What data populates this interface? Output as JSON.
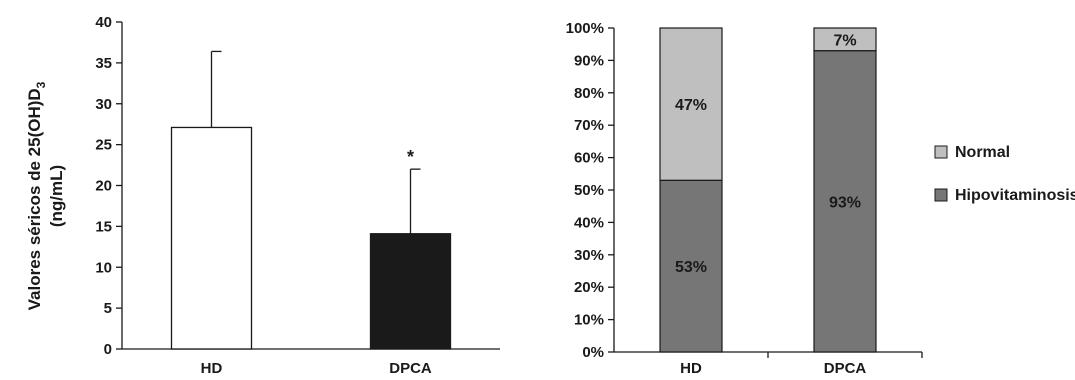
{
  "chart_data": [
    {
      "type": "bar",
      "categories": [
        "HD",
        "DPCA"
      ],
      "values": [
        27.1,
        14.1
      ],
      "error_upper": [
        36.4,
        22.0
      ],
      "colors": [
        "#ffffff",
        "#1a1a1a"
      ],
      "annotations": [
        {
          "category": "DPCA",
          "text": "*"
        }
      ],
      "ylabel_line1": "Valores séricos de 25(OH)D",
      "ylabel_sub": "3",
      "ylabel_line2": "(ng/mL)",
      "yticks": [
        "0",
        "5",
        "10",
        "15",
        "20",
        "25",
        "30",
        "35",
        "40"
      ],
      "ylim": [
        0,
        40
      ],
      "grid": false
    },
    {
      "type": "bar",
      "stacked": true,
      "percent": true,
      "categories": [
        "HD",
        "DPCA"
      ],
      "series": [
        {
          "name": "Hipovitaminosis",
          "values": [
            53,
            93
          ],
          "labels": [
            "53%",
            "93%"
          ],
          "color": "#767676"
        },
        {
          "name": "Normal",
          "values": [
            47,
            7
          ],
          "labels": [
            "47%",
            "7%"
          ],
          "color": "#bfbfbf"
        }
      ],
      "legend_order": [
        "Normal",
        "Hipovitaminosis"
      ],
      "legend_position": "right",
      "yticks": [
        "0%",
        "10%",
        "20%",
        "30%",
        "40%",
        "50%",
        "60%",
        "70%",
        "80%",
        "90%",
        "100%"
      ],
      "ylim": [
        0,
        100
      ],
      "grid": false
    }
  ]
}
